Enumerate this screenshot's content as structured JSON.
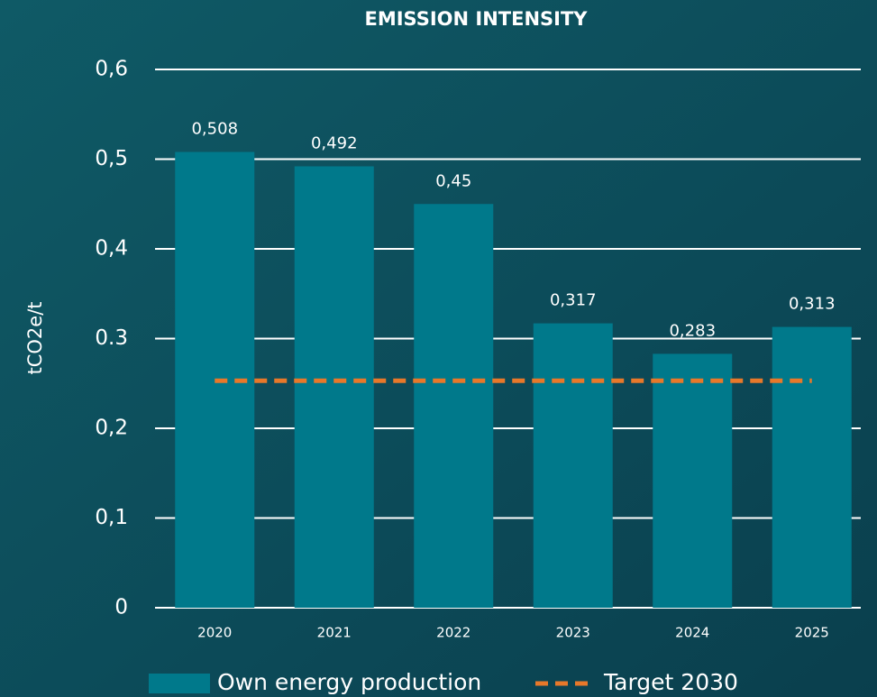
{
  "chart_data": {
    "type": "bar",
    "title": "EMISSION INTENSITY",
    "y_label": "tCO2e/t",
    "categories": [
      "2020",
      "2021",
      "2022",
      "2023",
      "2024",
      "2025"
    ],
    "series": [
      {
        "name": "Own energy production",
        "color": "#00798b",
        "values": [
          0.508,
          0.492,
          0.45,
          0.317,
          0.283,
          0.313
        ],
        "value_labels": [
          "0,508",
          "0,492",
          "0,45",
          "0,317",
          "0,283",
          "0,313"
        ]
      }
    ],
    "target": {
      "name": "Target 2030",
      "value": 0.253,
      "color": "#e8782a"
    },
    "ylim": [
      0,
      0.6
    ],
    "yticks": [
      0,
      {
        "value": 0.1,
        "label": "0,1"
      },
      {
        "value": 0.2,
        "label": "0,2"
      },
      0.3,
      {
        "value": 0.4,
        "label": "0,4"
      },
      {
        "value": 0.5,
        "label": "0,5"
      },
      {
        "value": 0.6,
        "label": "0,6"
      }
    ],
    "grid": true
  }
}
